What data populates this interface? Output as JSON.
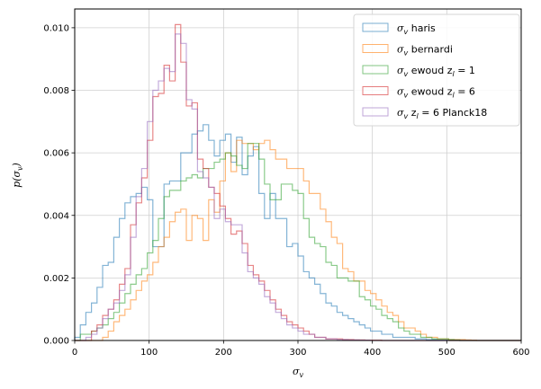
{
  "chart_data": {
    "type": "bar",
    "subtype": "step-histogram",
    "title": "",
    "xlabel": "σ_v",
    "ylabel": "p(σ_v)",
    "xlim": [
      0,
      600
    ],
    "ylim": [
      0,
      0.0106
    ],
    "grid": true,
    "legend_position": "upper right",
    "x_ticks": [
      "0",
      "100",
      "200",
      "300",
      "400",
      "500",
      "600"
    ],
    "y_ticks": [
      "0.000",
      "0.002",
      "0.004",
      "0.006",
      "0.008",
      "0.010"
    ],
    "bin_width": 7.5,
    "bin_start": 0,
    "series": [
      {
        "name": "σ_v haris",
        "color": "#1f77b4",
        "values": [
          0.0001,
          0.0005,
          0.0009,
          0.0012,
          0.0017,
          0.0024,
          0.0025,
          0.0033,
          0.0039,
          0.0044,
          0.0046,
          0.0047,
          0.0049,
          0.0045,
          0.003,
          0.003,
          0.005,
          0.0051,
          0.0051,
          0.006,
          0.006,
          0.0066,
          0.0067,
          0.0069,
          0.0064,
          0.0059,
          0.0064,
          0.0066,
          0.0057,
          0.0065,
          0.0053,
          0.0059,
          0.0062,
          0.0047,
          0.0039,
          0.0047,
          0.0039,
          0.0039,
          0.003,
          0.0031,
          0.0027,
          0.0022,
          0.002,
          0.0018,
          0.0015,
          0.0012,
          0.0011,
          0.0009,
          0.0008,
          0.0007,
          0.0006,
          0.0005,
          0.0004,
          0.0003,
          0.0003,
          0.0002,
          0.0002,
          0.0001,
          0.0001,
          0.0001,
          0.0001,
          5e-05,
          5e-05,
          3e-05,
          3e-05,
          2e-05,
          2e-05,
          1e-05,
          1e-05,
          0,
          0,
          0,
          0,
          0,
          0,
          0,
          0,
          0,
          0,
          0
        ]
      },
      {
        "name": "σ_v bernardi",
        "color": "#ff7f0e",
        "values": [
          0,
          0,
          0,
          0,
          0,
          0.0001,
          0.0003,
          0.0006,
          0.0008,
          0.001,
          0.0013,
          0.0016,
          0.0019,
          0.0021,
          0.0025,
          0.003,
          0.0033,
          0.0038,
          0.0041,
          0.0042,
          0.0032,
          0.004,
          0.0039,
          0.0032,
          0.0045,
          0.0041,
          0.0051,
          0.006,
          0.0054,
          0.0064,
          0.0063,
          0.0063,
          0.0061,
          0.0063,
          0.0064,
          0.0061,
          0.0058,
          0.0058,
          0.0055,
          0.0055,
          0.0055,
          0.0051,
          0.0047,
          0.0047,
          0.0042,
          0.0038,
          0.0033,
          0.0031,
          0.0023,
          0.0022,
          0.0019,
          0.0019,
          0.0016,
          0.0015,
          0.0013,
          0.0011,
          0.0009,
          0.0008,
          0.0006,
          0.0004,
          0.0004,
          0.0003,
          0.0002,
          0.0001,
          0.0001,
          5e-05,
          5e-05,
          3e-05,
          3e-05,
          3e-05,
          2e-05,
          1e-05,
          0,
          0,
          0,
          0,
          0,
          0,
          0,
          0
        ]
      },
      {
        "name": "σ_v ewoud z_l = 1",
        "color": "#2ca02c",
        "values": [
          0,
          0.0002,
          0.0002,
          0.0003,
          0.0004,
          0.0005,
          0.0007,
          0.0009,
          0.0012,
          0.0015,
          0.0018,
          0.0021,
          0.0023,
          0.0028,
          0.0032,
          0.0039,
          0.0046,
          0.0048,
          0.0048,
          0.0051,
          0.0052,
          0.0053,
          0.0052,
          0.0055,
          0.0055,
          0.0057,
          0.0058,
          0.006,
          0.0059,
          0.0056,
          0.0055,
          0.0063,
          0.0063,
          0.0058,
          0.005,
          0.0045,
          0.0045,
          0.005,
          0.005,
          0.0048,
          0.0047,
          0.0039,
          0.0033,
          0.0031,
          0.003,
          0.0025,
          0.0024,
          0.002,
          0.002,
          0.0019,
          0.0019,
          0.0014,
          0.0013,
          0.0011,
          0.001,
          0.0008,
          0.0007,
          0.0006,
          0.0004,
          0.0003,
          0.0002,
          0.0002,
          0.0001,
          0.0001,
          5e-05,
          5e-05,
          5e-05,
          3e-05,
          2e-05,
          0,
          0,
          0,
          0,
          0,
          0,
          0,
          0,
          0,
          0,
          0
        ]
      },
      {
        "name": "σ_v ewoud z_l = 6",
        "color": "#d62728",
        "values": [
          0,
          0,
          0,
          0.0003,
          0.0005,
          0.0008,
          0.001,
          0.0013,
          0.0018,
          0.0023,
          0.0037,
          0.0044,
          0.0052,
          0.0064,
          0.0078,
          0.0079,
          0.0088,
          0.0083,
          0.0101,
          0.0089,
          0.0075,
          0.0076,
          0.0058,
          0.0055,
          0.0049,
          0.0047,
          0.0043,
          0.0039,
          0.0034,
          0.0035,
          0.0031,
          0.0024,
          0.0021,
          0.0019,
          0.0016,
          0.0013,
          0.001,
          0.0008,
          0.0006,
          0.0005,
          0.0004,
          0.0003,
          0.0002,
          0.0001,
          0.0001,
          5e-05,
          5e-05,
          5e-05,
          3e-05,
          3e-05,
          2e-05,
          2e-05,
          1e-05,
          1e-05,
          1e-05,
          0,
          0,
          0,
          0,
          0,
          0,
          0,
          0,
          0,
          0,
          0,
          0,
          0,
          0,
          0,
          0,
          0,
          0,
          0,
          0,
          0,
          0,
          0,
          0,
          0
        ]
      },
      {
        "name": "σ_v z_l = 6 Planck18",
        "color": "#9467bd",
        "values": [
          0,
          0,
          0.0001,
          0.0002,
          0.0004,
          0.0007,
          0.001,
          0.0012,
          0.0016,
          0.0021,
          0.0033,
          0.0046,
          0.0055,
          0.007,
          0.008,
          0.0083,
          0.0087,
          0.0086,
          0.0098,
          0.0095,
          0.0077,
          0.0074,
          0.0054,
          0.0052,
          0.0049,
          0.0039,
          0.0042,
          0.0038,
          0.0037,
          0.0037,
          0.0028,
          0.0022,
          0.002,
          0.0018,
          0.0014,
          0.0012,
          0.0009,
          0.0007,
          0.0005,
          0.0004,
          0.0003,
          0.0002,
          0.0002,
          0.0001,
          0.0001,
          5e-05,
          5e-05,
          3e-05,
          3e-05,
          2e-05,
          2e-05,
          1e-05,
          1e-05,
          0,
          0,
          0,
          0,
          0,
          0,
          0,
          0,
          0,
          0,
          0,
          0,
          0,
          0,
          0,
          0,
          0,
          0,
          0,
          0,
          0,
          0,
          0,
          0,
          0,
          0,
          0
        ]
      }
    ]
  },
  "legend": {
    "items": [
      {
        "prefix": "σ",
        "sub": "v",
        "rest": " haris",
        "color": "#1f77b4"
      },
      {
        "prefix": "σ",
        "sub": "v",
        "rest": " bernardi",
        "color": "#ff7f0e"
      },
      {
        "prefix": "σ",
        "sub": "v",
        "rest": " ewoud z",
        "sub2": "l",
        "rest2": " = 1",
        "color": "#2ca02c"
      },
      {
        "prefix": "σ",
        "sub": "v",
        "rest": " ewoud z",
        "sub2": "l",
        "rest2": " = 6",
        "color": "#d62728"
      },
      {
        "prefix": "σ",
        "sub": "v",
        "rest": " z",
        "sub2": "l",
        "rest2": " = 6 Planck18",
        "color": "#9467bd"
      }
    ]
  },
  "axes": {
    "xlabel_main": "σ",
    "xlabel_sub": "v",
    "ylabel_text": "p(σ",
    "ylabel_sub": "v",
    "ylabel_close": ")"
  }
}
